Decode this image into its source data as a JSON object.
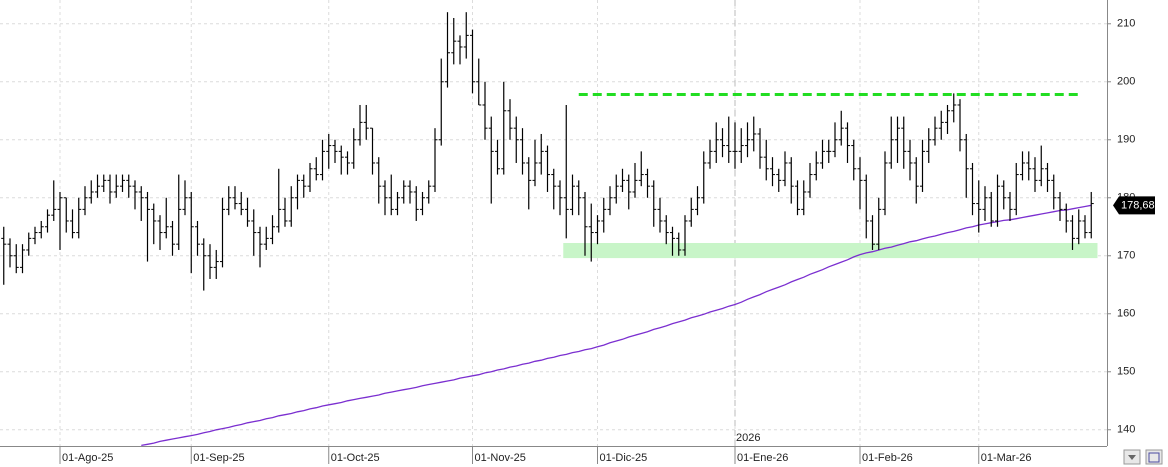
{
  "chart_data": {
    "type": "ohlc",
    "ylim": [
      137.2,
      214.1
    ],
    "yticks": [
      140,
      150,
      160,
      170,
      180,
      190,
      200,
      210
    ],
    "grid": true,
    "bar_color": "#000000",
    "categories": [
      null,
      null,
      null,
      null,
      null,
      null,
      null,
      null,
      null,
      "01-Ago-25",
      null,
      null,
      null,
      null,
      null,
      null,
      null,
      null,
      null,
      null,
      null,
      null,
      null,
      null,
      null,
      null,
      null,
      null,
      null,
      null,
      "01-Sep-25",
      null,
      null,
      null,
      null,
      null,
      null,
      null,
      null,
      null,
      null,
      null,
      null,
      null,
      null,
      null,
      null,
      null,
      null,
      null,
      null,
      null,
      "01-Oct-25",
      null,
      null,
      null,
      null,
      null,
      null,
      null,
      null,
      null,
      null,
      null,
      null,
      null,
      null,
      null,
      null,
      null,
      null,
      null,
      null,
      null,
      null,
      "01-Nov-25",
      null,
      null,
      null,
      null,
      null,
      null,
      null,
      null,
      null,
      null,
      null,
      null,
      null,
      null,
      null,
      null,
      null,
      null,
      null,
      "01-Dic-25",
      null,
      null,
      null,
      null,
      null,
      null,
      null,
      null,
      null,
      null,
      null,
      null,
      null,
      null,
      null,
      null,
      null,
      null,
      null,
      null,
      null,
      "01-Ene-26",
      null,
      null,
      null,
      null,
      null,
      null,
      null,
      null,
      null,
      null,
      null,
      null,
      null,
      null,
      null,
      null,
      null,
      null,
      null,
      "01-Feb-26",
      null,
      null,
      null,
      null,
      null,
      null,
      null,
      null,
      null,
      null,
      null,
      null,
      null,
      null,
      null,
      null,
      null,
      null,
      "01-Mar-26",
      null,
      null,
      null,
      null,
      null,
      null,
      null,
      null,
      null,
      null,
      null,
      null,
      null,
      null,
      null,
      null,
      null,
      null
    ],
    "ohlc": [
      [
        173,
        175,
        165,
        172
      ],
      [
        172,
        173,
        168,
        170
      ],
      [
        170,
        172,
        167,
        168
      ],
      [
        168,
        172,
        167,
        171
      ],
      [
        171,
        174,
        170,
        173
      ],
      [
        173,
        175,
        172,
        174
      ],
      [
        174,
        176,
        173,
        175
      ],
      [
        175,
        178,
        174,
        177
      ],
      [
        177,
        183,
        176,
        178
      ],
      [
        178,
        181,
        171,
        180
      ],
      [
        180,
        180,
        174,
        176
      ],
      [
        176,
        178,
        173,
        174
      ],
      [
        174,
        180,
        173,
        178
      ],
      [
        178,
        182,
        177,
        180
      ],
      [
        180,
        183,
        179,
        181
      ],
      [
        181,
        184,
        180,
        182
      ],
      [
        182,
        184,
        181,
        183
      ],
      [
        183,
        184,
        179,
        181
      ],
      [
        181,
        184,
        180,
        182
      ],
      [
        182,
        184,
        181,
        183
      ],
      [
        183,
        184,
        180,
        182
      ],
      [
        182,
        183,
        178,
        181
      ],
      [
        181,
        182,
        176,
        180
      ],
      [
        180,
        181,
        169,
        178
      ],
      [
        178,
        179,
        172,
        176
      ],
      [
        176,
        177,
        171,
        174
      ],
      [
        174,
        180,
        173,
        175
      ],
      [
        175,
        176,
        170,
        172
      ],
      [
        172,
        184,
        171,
        178
      ],
      [
        178,
        183,
        177,
        180
      ],
      [
        180,
        181,
        167,
        175
      ],
      [
        175,
        176,
        170,
        172
      ],
      [
        172,
        173,
        164,
        170
      ],
      [
        170,
        172,
        166,
        168
      ],
      [
        168,
        171,
        166,
        169
      ],
      [
        169,
        180,
        168,
        178
      ],
      [
        178,
        182,
        177,
        180
      ],
      [
        180,
        182,
        178,
        179
      ],
      [
        179,
        181,
        177,
        178
      ],
      [
        178,
        180,
        175,
        176
      ],
      [
        176,
        178,
        170,
        174
      ],
      [
        174,
        175,
        168,
        172
      ],
      [
        172,
        175,
        171,
        173
      ],
      [
        173,
        177,
        172,
        175
      ],
      [
        175,
        185,
        174,
        178
      ],
      [
        178,
        180,
        175,
        176
      ],
      [
        176,
        182,
        175,
        180
      ],
      [
        180,
        184,
        178,
        183
      ],
      [
        183,
        184,
        180,
        182
      ],
      [
        182,
        186,
        181,
        185
      ],
      [
        185,
        187,
        183,
        184
      ],
      [
        184,
        190,
        183,
        188
      ],
      [
        188,
        191,
        185,
        189
      ],
      [
        189,
        190,
        186,
        188
      ],
      [
        188,
        189,
        184,
        187
      ],
      [
        187,
        188,
        184,
        186
      ],
      [
        186,
        192,
        185,
        190
      ],
      [
        190,
        196,
        189,
        193
      ],
      [
        193,
        196,
        190,
        192
      ],
      [
        192,
        192,
        184,
        186
      ],
      [
        186,
        187,
        179,
        182
      ],
      [
        182,
        183,
        177,
        180
      ],
      [
        180,
        184,
        177,
        178
      ],
      [
        178,
        181,
        177,
        180
      ],
      [
        180,
        183,
        179,
        182
      ],
      [
        182,
        183,
        179,
        181
      ],
      [
        181,
        182,
        176,
        178
      ],
      [
        178,
        181,
        177,
        180
      ],
      [
        180,
        183,
        179,
        182
      ],
      [
        182,
        192,
        181,
        190
      ],
      [
        190,
        204,
        189,
        200
      ],
      [
        200,
        212,
        199,
        205
      ],
      [
        205,
        211,
        203,
        207
      ],
      [
        207,
        208,
        203,
        206
      ],
      [
        206,
        212,
        204,
        208
      ],
      [
        208,
        209,
        198,
        200
      ],
      [
        200,
        204,
        196,
        196
      ],
      [
        196,
        200,
        190,
        192
      ],
      [
        192,
        194,
        179,
        188
      ],
      [
        188,
        190,
        184,
        185
      ],
      [
        185,
        200,
        184,
        195
      ],
      [
        195,
        197,
        190,
        192
      ],
      [
        192,
        194,
        186,
        190
      ],
      [
        190,
        192,
        184,
        186
      ],
      [
        186,
        187,
        178,
        183
      ],
      [
        183,
        190,
        182,
        186
      ],
      [
        186,
        191,
        184,
        188
      ],
      [
        188,
        189,
        181,
        184
      ],
      [
        184,
        185,
        178,
        182
      ],
      [
        182,
        183,
        177,
        180
      ],
      [
        180,
        196,
        173,
        178
      ],
      [
        178,
        184,
        177,
        182
      ],
      [
        182,
        183,
        177,
        180
      ],
      [
        180,
        181,
        170,
        175
      ],
      [
        175,
        179,
        169,
        174
      ],
      [
        174,
        177,
        172,
        176
      ],
      [
        176,
        180,
        174,
        178
      ],
      [
        178,
        182,
        177,
        180
      ],
      [
        180,
        184,
        179,
        182
      ],
      [
        182,
        185,
        181,
        183
      ],
      [
        183,
        184,
        178,
        181
      ],
      [
        181,
        186,
        180,
        183
      ],
      [
        183,
        188,
        182,
        184
      ],
      [
        184,
        185,
        180,
        182
      ],
      [
        182,
        183,
        175,
        178
      ],
      [
        178,
        180,
        174,
        176
      ],
      [
        176,
        177,
        172,
        174
      ],
      [
        174,
        175,
        170,
        173
      ],
      [
        173,
        174,
        170,
        171
      ],
      [
        171,
        177,
        170,
        176
      ],
      [
        176,
        180,
        175,
        178
      ],
      [
        178,
        182,
        177,
        180
      ],
      [
        180,
        188,
        179,
        186
      ],
      [
        186,
        190,
        185,
        188
      ],
      [
        188,
        193,
        186,
        190
      ],
      [
        190,
        192,
        187,
        189
      ],
      [
        189,
        194,
        186,
        188
      ],
      [
        188,
        193,
        185,
        188
      ],
      [
        188,
        192,
        186,
        189
      ],
      [
        189,
        193,
        187,
        190
      ],
      [
        190,
        194,
        188,
        191
      ],
      [
        191,
        192,
        185,
        187
      ],
      [
        187,
        190,
        183,
        185
      ],
      [
        185,
        187,
        182,
        184
      ],
      [
        184,
        185,
        181,
        183
      ],
      [
        183,
        188,
        182,
        186
      ],
      [
        186,
        187,
        179,
        182
      ],
      [
        182,
        183,
        177,
        178
      ],
      [
        178,
        183,
        177,
        181
      ],
      [
        181,
        186,
        180,
        184
      ],
      [
        184,
        188,
        183,
        186
      ],
      [
        186,
        190,
        185,
        188
      ],
      [
        188,
        190,
        186,
        188
      ],
      [
        188,
        193,
        187,
        190
      ],
      [
        190,
        195,
        189,
        192
      ],
      [
        192,
        193,
        186,
        189
      ],
      [
        189,
        190,
        183,
        185
      ],
      [
        185,
        187,
        178,
        183
      ],
      [
        183,
        184,
        173,
        176
      ],
      [
        176,
        177,
        171,
        172
      ],
      [
        172,
        180,
        171,
        178
      ],
      [
        178,
        188,
        177,
        186
      ],
      [
        186,
        194,
        185,
        190
      ],
      [
        190,
        194,
        186,
        192
      ],
      [
        192,
        194,
        185,
        188
      ],
      [
        188,
        190,
        183,
        186
      ],
      [
        186,
        187,
        179,
        182
      ],
      [
        182,
        190,
        181,
        188
      ],
      [
        188,
        192,
        186,
        190
      ],
      [
        190,
        194,
        189,
        192
      ],
      [
        192,
        195,
        190,
        193
      ],
      [
        193,
        196,
        191,
        195
      ],
      [
        195,
        198,
        193,
        196
      ],
      [
        196,
        197,
        188,
        190
      ],
      [
        190,
        191,
        180,
        185
      ],
      [
        185,
        186,
        177,
        179
      ],
      [
        179,
        183,
        174,
        178
      ],
      [
        178,
        182,
        176,
        180
      ],
      [
        180,
        181,
        175,
        176
      ],
      [
        176,
        184,
        175,
        182
      ],
      [
        182,
        183,
        178,
        180
      ],
      [
        180,
        181,
        176,
        178
      ],
      [
        178,
        186,
        177,
        184
      ],
      [
        184,
        188,
        183,
        186
      ],
      [
        186,
        188,
        183,
        185
      ],
      [
        185,
        187,
        181,
        183
      ],
      [
        183,
        189,
        182,
        185
      ],
      [
        185,
        186,
        181,
        183
      ],
      [
        183,
        184,
        178,
        180
      ],
      [
        180,
        181,
        176,
        178
      ],
      [
        178,
        179,
        174,
        176
      ],
      [
        176,
        177,
        171,
        173
      ],
      [
        173,
        178,
        172,
        176
      ],
      [
        176,
        177,
        173,
        174
      ],
      [
        174,
        181,
        173,
        179
      ]
    ],
    "moving_average": {
      "color": "#7b2fd0",
      "values": [
        null,
        null,
        null,
        null,
        null,
        null,
        null,
        null,
        null,
        null,
        null,
        null,
        null,
        null,
        null,
        null,
        null,
        null,
        null,
        null,
        null,
        null,
        137.3,
        137.5,
        137.7,
        138.0,
        138.2,
        138.4,
        138.6,
        138.8,
        139.0,
        139.2,
        139.5,
        139.7,
        140.0,
        140.2,
        140.4,
        140.7,
        140.9,
        141.2,
        141.4,
        141.6,
        141.9,
        142.1,
        142.4,
        142.6,
        142.8,
        143.1,
        143.3,
        143.6,
        143.8,
        144.1,
        144.3,
        144.5,
        144.7,
        145.0,
        145.2,
        145.4,
        145.6,
        145.8,
        146.0,
        146.3,
        146.5,
        146.7,
        146.9,
        147.1,
        147.3,
        147.6,
        147.8,
        148.0,
        148.2,
        148.4,
        148.6,
        148.9,
        149.1,
        149.3,
        149.5,
        149.8,
        150.0,
        150.3,
        150.5,
        150.8,
        151.0,
        151.3,
        151.5,
        151.8,
        152.0,
        152.3,
        152.5,
        152.8,
        153.0,
        153.3,
        153.5,
        153.8,
        154.0,
        154.3,
        154.6,
        155.0,
        155.3,
        155.6,
        156.0,
        156.3,
        156.6,
        156.9,
        157.3,
        157.6,
        157.9,
        158.3,
        158.6,
        158.9,
        159.3,
        159.6,
        159.9,
        160.3,
        160.6,
        160.9,
        161.3,
        161.6,
        162.0,
        162.5,
        162.9,
        163.3,
        163.8,
        164.2,
        164.6,
        165.0,
        165.5,
        165.9,
        166.3,
        166.8,
        167.2,
        167.6,
        168.1,
        168.5,
        168.9,
        169.3,
        169.8,
        170.2,
        170.5,
        170.7,
        171.0,
        171.3,
        171.5,
        171.8,
        172.1,
        172.4,
        172.6,
        172.9,
        173.2,
        173.4,
        173.7,
        174.0,
        174.2,
        174.5,
        174.8,
        175.0,
        175.3,
        175.5,
        175.7,
        175.9,
        176.1,
        176.2,
        176.4,
        176.6,
        176.8,
        177.0,
        177.2,
        177.4,
        177.6,
        177.8,
        177.9,
        178.1,
        178.3,
        178.5,
        178.7
      ]
    },
    "resistance": {
      "value": 197.8,
      "from": 92,
      "to": 172,
      "color": "#22dd22"
    },
    "support_zone": {
      "low": 169.6,
      "high": 172.2,
      "from": 90,
      "to": 175,
      "color": "#c8f5c8"
    },
    "year_marker": {
      "index": 117,
      "label": "2026"
    },
    "last_value": {
      "value": 178.68,
      "label": "178,68"
    }
  }
}
